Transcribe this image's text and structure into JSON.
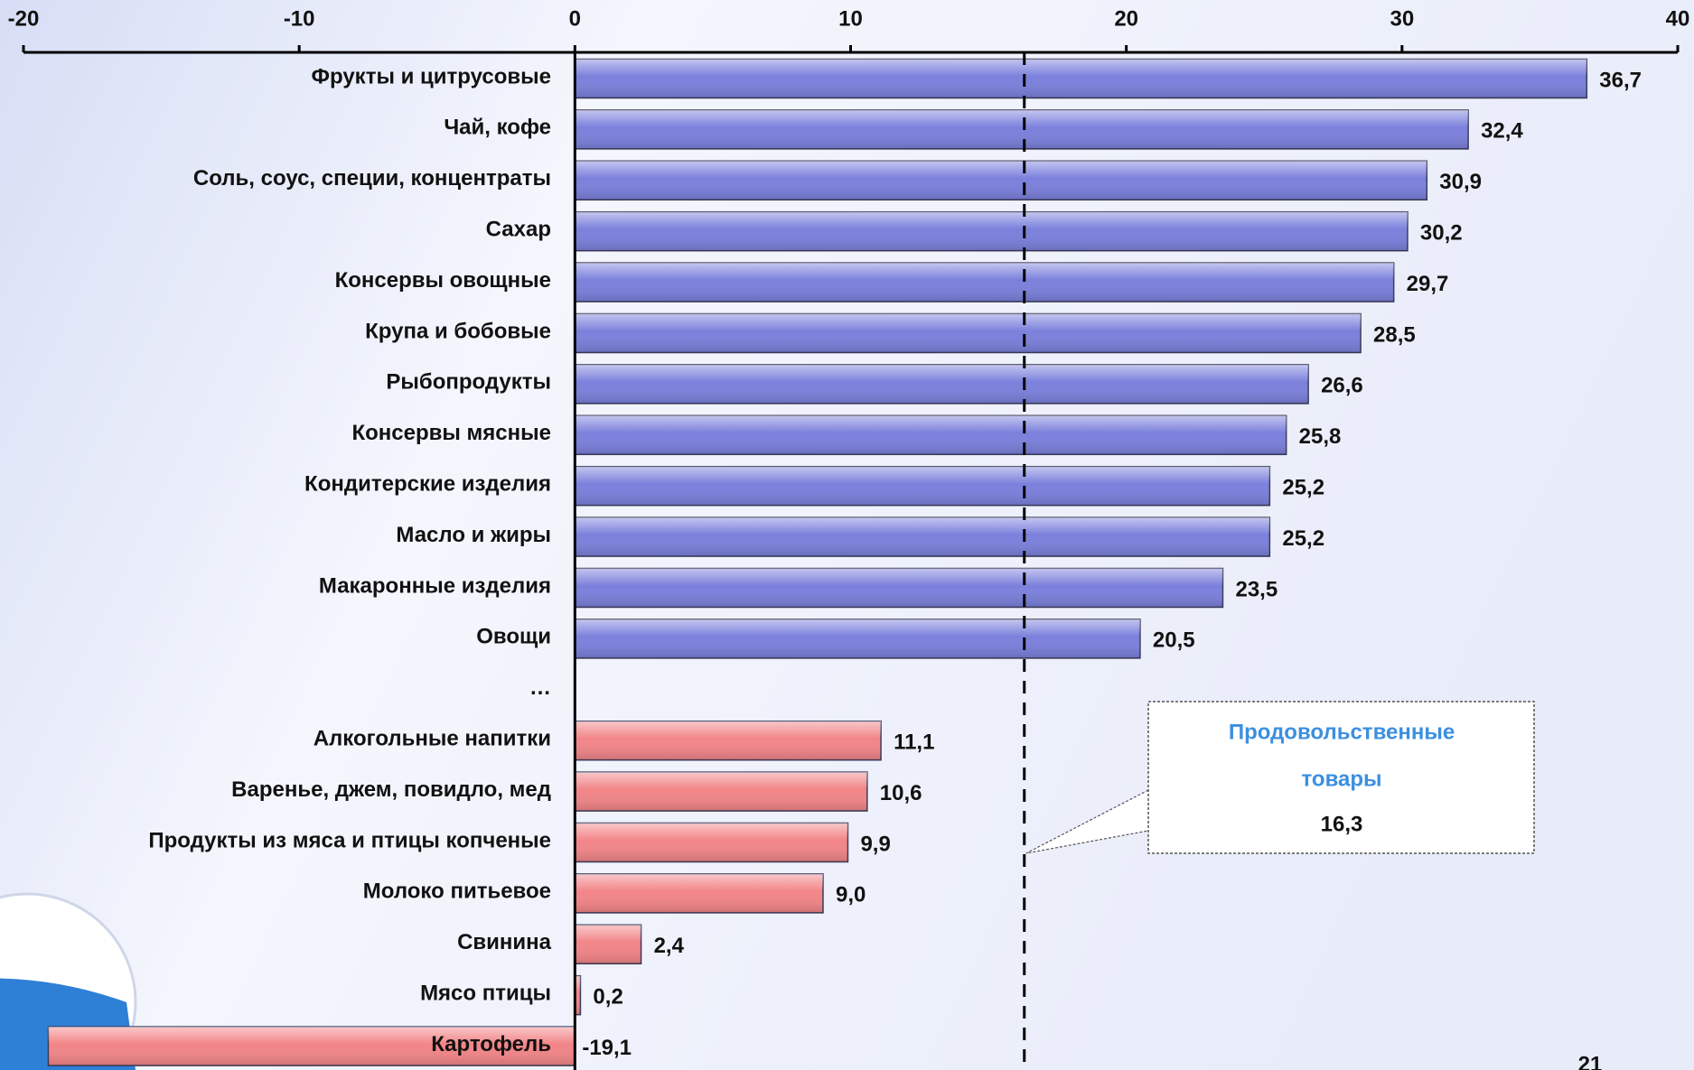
{
  "chart_data": {
    "type": "hbar",
    "categories": [
      "Фрукты и цитрусовые",
      "Чай, кофе",
      "Соль, соус, специи, концентраты",
      "Сахар",
      "Консервы овощные",
      "Крупа и бобовые",
      "Рыбопродукты",
      "Консервы мясные",
      "Кондитерские изделия",
      "Масло и жиры",
      "Макаронные изделия",
      "Овощи",
      "…",
      "Алкогольные напитки",
      "Варенье, джем, повидло, мед",
      "Продукты из мяса и птицы копченые",
      "Молоко питьевое",
      "Свинина",
      "Мясо птицы",
      "Картофель"
    ],
    "values": [
      36.7,
      32.4,
      30.9,
      30.2,
      29.7,
      28.5,
      26.6,
      25.8,
      25.2,
      25.2,
      23.5,
      20.5,
      null,
      11.1,
      10.6,
      9.9,
      9.0,
      2.4,
      0.2,
      -19.1
    ],
    "value_labels": [
      "36,7",
      "32,4",
      "30,9",
      "30,2",
      "29,7",
      "28,5",
      "26,6",
      "25,8",
      "25,2",
      "25,2",
      "23,5",
      "20,5",
      null,
      "11,1",
      "10,6",
      "9,9",
      "9,0",
      "2,4",
      "0,2",
      "-19,1"
    ],
    "colors": [
      "#7b80dc",
      "#7b80dc",
      "#7b80dc",
      "#7b80dc",
      "#7b80dc",
      "#7b80dc",
      "#7b80dc",
      "#7b80dc",
      "#7b80dc",
      "#7b80dc",
      "#7b80dc",
      "#7b80dc",
      null,
      "#f28588",
      "#f28588",
      "#f28588",
      "#f28588",
      "#f28588",
      "#f28588",
      "#f28588"
    ],
    "xlim": [
      -20,
      40
    ],
    "xticks": [
      -20,
      -10,
      0,
      10,
      20,
      30,
      40
    ],
    "reference": {
      "value": 16.3,
      "label_lines": [
        "Продовольственные",
        "товары"
      ],
      "value_label": "16,3"
    },
    "page_number": "21"
  }
}
